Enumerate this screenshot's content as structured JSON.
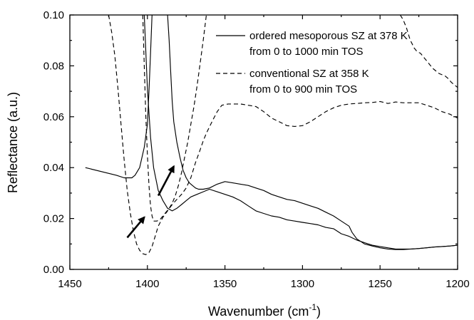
{
  "chart_data": {
    "type": "line",
    "xlabel": "Wavenumber (cm",
    "xlabel_sup": "-1",
    "xlabel_end": ")",
    "ylabel": "Reflectance (a.u.)",
    "xlim": [
      1450,
      1200
    ],
    "ylim": [
      0.0,
      0.1
    ],
    "x_ticks": [
      1450,
      1400,
      1350,
      1300,
      1250,
      1200
    ],
    "x_tick_labels": [
      "1450",
      "1400",
      "1350",
      "1300",
      "1250",
      "1200"
    ],
    "y_ticks": [
      0.0,
      0.02,
      0.04,
      0.06,
      0.08,
      0.1
    ],
    "y_tick_labels": [
      "0.00",
      "0.02",
      "0.04",
      "0.06",
      "0.08",
      "0.10"
    ],
    "grid": false,
    "legend_position": "top-right",
    "legend": [
      {
        "label": "ordered mesoporous SZ at 378 K",
        "label2": "from 0 to 1000 min TOS",
        "style": "solid"
      },
      {
        "label": "conventional SZ at 358 K",
        "label2": "from 0 to 900 min TOS",
        "style": "dashed"
      }
    ],
    "series": [
      {
        "style": "solid",
        "x": [
          1397,
          1398,
          1399,
          1400,
          1402,
          1405,
          1408,
          1410,
          1415,
          1420,
          1440
        ],
        "y": [
          0.1,
          0.085,
          0.07,
          0.057,
          0.048,
          0.04,
          0.037,
          0.036,
          0.036,
          0.037,
          0.04
        ],
        "visible_from": 1397
      },
      {
        "style": "solid",
        "x": [
          1402,
          1400,
          1398,
          1396,
          1393,
          1390,
          1387,
          1384,
          1381,
          1378,
          1375,
          1372,
          1368,
          1364,
          1360,
          1355,
          1350,
          1345,
          1340,
          1335,
          1330,
          1325,
          1320,
          1315,
          1310,
          1305,
          1300,
          1295,
          1290,
          1285,
          1280,
          1275,
          1270,
          1265,
          1260,
          1255,
          1250,
          1245,
          1240,
          1235,
          1230,
          1225,
          1220,
          1215,
          1210,
          1205,
          1200
        ],
        "y": [
          0.1,
          0.071,
          0.052,
          0.04,
          0.031,
          0.027,
          0.024,
          0.023,
          0.024,
          0.0255,
          0.027,
          0.0285,
          0.0295,
          0.0305,
          0.0315,
          0.0305,
          0.0295,
          0.0285,
          0.027,
          0.025,
          0.023,
          0.022,
          0.021,
          0.0205,
          0.0195,
          0.019,
          0.0185,
          0.018,
          0.0175,
          0.0165,
          0.016,
          0.014,
          0.013,
          0.0115,
          0.0105,
          0.0095,
          0.009,
          0.0085,
          0.008,
          0.008,
          0.008,
          0.0082,
          0.0085,
          0.0088,
          0.009,
          0.0092,
          0.0095
        ]
      },
      {
        "style": "solid",
        "x": [
          1387,
          1386,
          1385,
          1384,
          1383,
          1381,
          1379,
          1377,
          1375,
          1373,
          1371,
          1369,
          1367,
          1364,
          1360,
          1355,
          1350,
          1345,
          1340,
          1335,
          1330,
          1325,
          1320,
          1315,
          1310,
          1305,
          1300,
          1295,
          1290,
          1285,
          1280,
          1275,
          1270,
          1268,
          1265,
          1260,
          1255,
          1250,
          1245,
          1240,
          1235,
          1230,
          1225,
          1220,
          1215,
          1210,
          1205,
          1200
        ],
        "y": [
          0.1,
          0.09,
          0.078,
          0.066,
          0.058,
          0.05,
          0.044,
          0.039,
          0.036,
          0.034,
          0.033,
          0.032,
          0.0315,
          0.0315,
          0.032,
          0.0335,
          0.0345,
          0.034,
          0.0335,
          0.033,
          0.032,
          0.031,
          0.0295,
          0.0285,
          0.0275,
          0.027,
          0.026,
          0.025,
          0.024,
          0.0225,
          0.021,
          0.019,
          0.017,
          0.0145,
          0.012,
          0.01,
          0.0092,
          0.0085,
          0.008,
          0.0078,
          0.0078,
          0.008,
          0.0082,
          0.0085,
          0.0088,
          0.009,
          0.0092,
          0.0095
        ]
      },
      {
        "style": "dashed",
        "x": [
          1425,
          1423,
          1421,
          1419,
          1417,
          1415,
          1413,
          1411,
          1409,
          1407,
          1405,
          1403,
          1401,
          1399,
          1397,
          1395,
          1393,
          1390,
          1387,
          1384,
          1381,
          1378,
          1375,
          1372,
          1369,
          1366,
          1364,
          1362,
          1360,
          1358,
          1355,
          1352,
          1348,
          1345,
          1340,
          1335,
          1330,
          1325,
          1320,
          1315,
          1310,
          1305,
          1300,
          1295,
          1290,
          1285,
          1280,
          1275,
          1270,
          1265,
          1260,
          1255,
          1250,
          1245,
          1240,
          1235,
          1230,
          1225,
          1220,
          1215,
          1210,
          1205,
          1200
        ],
        "y": [
          0.1,
          0.093,
          0.084,
          0.071,
          0.057,
          0.043,
          0.031,
          0.022,
          0.015,
          0.01,
          0.0075,
          0.0062,
          0.0058,
          0.0066,
          0.009,
          0.013,
          0.017,
          0.0205,
          0.023,
          0.0255,
          0.0275,
          0.0295,
          0.032,
          0.036,
          0.042,
          0.047,
          0.0505,
          0.0535,
          0.056,
          0.0585,
          0.062,
          0.0645,
          0.065,
          0.065,
          0.065,
          0.0645,
          0.064,
          0.062,
          0.0595,
          0.058,
          0.0565,
          0.0562,
          0.0565,
          0.058,
          0.06,
          0.062,
          0.0635,
          0.0645,
          0.065,
          0.0652,
          0.0655,
          0.0656,
          0.066,
          0.0652,
          0.0658,
          0.0655,
          0.0655,
          0.0655,
          0.0645,
          0.0635,
          0.062,
          0.061,
          0.0595
        ]
      },
      {
        "style": "dashed",
        "x": [
          1403,
          1402,
          1401,
          1400,
          1399,
          1398,
          1397,
          1396,
          1394,
          1392,
          1390,
          1388,
          1386,
          1384,
          1382,
          1380,
          1378,
          1376,
          1374,
          1372,
          1370,
          1368,
          1366,
          1364,
          1362
        ],
        "y": [
          0.1,
          0.08,
          0.06,
          0.045,
          0.033,
          0.025,
          0.021,
          0.019,
          0.019,
          0.0195,
          0.021,
          0.0225,
          0.024,
          0.026,
          0.029,
          0.033,
          0.038,
          0.044,
          0.05,
          0.057,
          0.064,
          0.072,
          0.081,
          0.09,
          0.1
        ]
      },
      {
        "style": "dashed",
        "x": [
          1237,
          1236,
          1235,
          1234,
          1233,
          1232,
          1231,
          1230,
          1228,
          1226,
          1224,
          1222,
          1220,
          1218,
          1216,
          1214,
          1212,
          1210,
          1208,
          1206,
          1204,
          1202,
          1200
        ],
        "y": [
          0.1,
          0.099,
          0.098,
          0.0965,
          0.095,
          0.093,
          0.091,
          0.0895,
          0.087,
          0.0855,
          0.085,
          0.0835,
          0.082,
          0.0805,
          0.079,
          0.078,
          0.077,
          0.0765,
          0.076,
          0.075,
          0.0735,
          0.0725,
          0.0715
        ]
      }
    ],
    "annotations": [
      {
        "type": "arrow",
        "from": [
          1393,
          0.029
        ],
        "to": [
          1383,
          0.0405
        ]
      },
      {
        "type": "arrow",
        "from": [
          1413,
          0.0125
        ],
        "to": [
          1402,
          0.0205
        ]
      }
    ]
  }
}
